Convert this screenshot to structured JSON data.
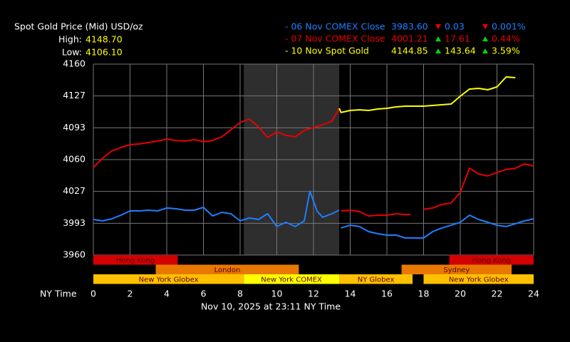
{
  "chart_data": {
    "type": "line",
    "title": "Spot Gold Price (Mid) USD/oz",
    "high_label": "High:",
    "high": "4148.70",
    "low_label": "Low:",
    "low": "4106.10",
    "xlabel": "NY Time",
    "footer": "Nov 10, 2025 at 23:11 NY Time",
    "xlim": [
      0,
      24
    ],
    "xticks": [
      0,
      2,
      4,
      6,
      8,
      10,
      12,
      14,
      16,
      18,
      20,
      22,
      24
    ],
    "ylim": [
      3960,
      4160
    ],
    "yticks": [
      4160,
      {
        "value": 4126.67,
        "label": "4127"
      },
      {
        "value": 4093.33,
        "label": "4093"
      },
      4060,
      {
        "value": 4026.67,
        "label": "4027"
      },
      {
        "value": 3993.33,
        "label": "3993"
      },
      3960
    ],
    "grid": true,
    "highlight": [
      8.2,
      13.4
    ],
    "highlight_color": "#2e2e2e",
    "series": [
      {
        "name": "- 06 Nov COMEX Close",
        "color": "#1e7fff",
        "close": "3983.60",
        "change_dir": "down",
        "change": "0.03",
        "pct": "0.001%",
        "x": [
          0,
          0.5,
          1,
          1.5,
          2,
          2.5,
          3,
          3.5,
          4,
          4.5,
          5,
          5.5,
          6,
          6.5,
          7,
          7.5,
          8,
          8.5,
          9,
          9.5,
          10,
          10.5,
          11,
          11.5,
          11.8,
          12.2,
          12.5,
          13,
          13.4,
          13.45,
          13.5,
          14,
          14.5,
          15,
          15.5,
          16,
          16.5,
          17,
          17.5,
          18,
          18.5,
          19,
          19.5,
          20,
          20.5,
          21,
          21.5,
          22,
          22.5,
          23,
          23.5,
          24
        ],
        "values": [
          3997.3,
          3995.8,
          3998,
          4001.8,
          4006.3,
          4006.3,
          4007,
          4006.3,
          4009.3,
          4008.5,
          4007,
          4007,
          4010,
          4001,
          4004.8,
          4003.3,
          3995.8,
          3998.8,
          3997.3,
          4003.3,
          3989.9,
          3994.3,
          3989.9,
          3995.8,
          4027,
          4006,
          3999.6,
          4003.3,
          4007,
          null,
          3988.4,
          3991.3,
          3989.9,
          3984.6,
          3982.4,
          3980.9,
          3980.9,
          3977.9,
          3977.9,
          3977.9,
          3984.6,
          3988.4,
          3991.3,
          3994.3,
          4001.8,
          3997.3,
          3994.3,
          3991.3,
          3989.9,
          3992.8,
          3995.8,
          3998
        ]
      },
      {
        "name": "- 07 Nov COMEX Close",
        "color": "#e80000",
        "close": "4001.21",
        "change_dir": "up",
        "change": "17.61",
        "pct": "0.44%",
        "x": [
          0,
          0.5,
          1,
          1.5,
          2,
          2.5,
          3,
          3.5,
          4,
          4.5,
          5,
          5.5,
          6,
          6.5,
          7,
          7.5,
          8,
          8.5,
          9,
          9.5,
          10,
          10.5,
          11,
          11.5,
          12,
          12.5,
          13,
          13.4,
          13.45,
          13.5,
          14,
          14.5,
          15,
          15.5,
          16,
          16.5,
          17,
          17.3,
          17.6,
          18,
          18.5,
          19,
          19.5,
          20,
          20.5,
          21,
          21.5,
          22,
          22.5,
          23,
          23.5,
          24
        ],
        "values": [
          4051.8,
          4061.5,
          4069,
          4072.7,
          4075.7,
          4076.4,
          4077.9,
          4079.4,
          4081.6,
          4080,
          4079.4,
          4080.9,
          4078.7,
          4080,
          4083.9,
          4091.3,
          4098.8,
          4102.5,
          4094.3,
          4083.1,
          4089.1,
          4085.4,
          4083.9,
          4090.6,
          4093.6,
          4096.6,
          4100.3,
          4113.7,
          null,
          4006.3,
          4007,
          4005.5,
          4001,
          4001.8,
          4001.8,
          4003.3,
          4002.5,
          4002.5,
          null,
          4007.8,
          4009.3,
          4013,
          4014.5,
          4025.7,
          4051,
          4045,
          4042.8,
          4046.6,
          4049.6,
          4051,
          4055.5,
          4053.3
        ]
      },
      {
        "name": "- 10 Nov Spot Gold",
        "color": "#ffff00",
        "close": "4144.85",
        "change_dir": "up",
        "change": "143.64",
        "pct": "3.59%",
        "x": [
          13.4,
          13.5,
          14,
          14.5,
          15,
          15.5,
          16,
          16.5,
          17,
          17.5,
          18,
          18.5,
          19,
          19.5,
          20,
          20.5,
          21,
          21.5,
          22,
          22.5,
          23
        ],
        "values": [
          4113.7,
          4109.3,
          4111.5,
          4112.2,
          4111.5,
          4113,
          4113.7,
          4115.2,
          4116,
          4116,
          4116,
          4116.7,
          4117.5,
          4118.2,
          4126.4,
          4133.9,
          4134.6,
          4133.1,
          4136.1,
          4146.6,
          4145.8
        ]
      }
    ],
    "sessions": [
      {
        "label": "Hong Kong",
        "row": 0,
        "start": 0,
        "end": 4.6,
        "color": "#d40000"
      },
      {
        "label": "Hong Kong",
        "row": 0,
        "start": 19.4,
        "end": 24,
        "color": "#d40000"
      },
      {
        "label": "London",
        "row": 1,
        "start": 3.4,
        "end": 11.2,
        "color": "#e87800"
      },
      {
        "label": "Sydney",
        "row": 1,
        "start": 16.8,
        "end": 22.8,
        "color": "#e87800"
      },
      {
        "label": "New York Globex",
        "row": 2,
        "start": 0,
        "end": 8.2,
        "color": "#ffc000"
      },
      {
        "label": "New York COMEX",
        "row": 2,
        "start": 8.2,
        "end": 13.4,
        "color": "#ffff00"
      },
      {
        "label": "NY Globex",
        "row": 2,
        "start": 13.4,
        "end": 17.4,
        "color": "#ffc000"
      },
      {
        "label": "New York Globex",
        "row": 2,
        "start": 18,
        "end": 24,
        "color": "#ffc000"
      }
    ]
  }
}
